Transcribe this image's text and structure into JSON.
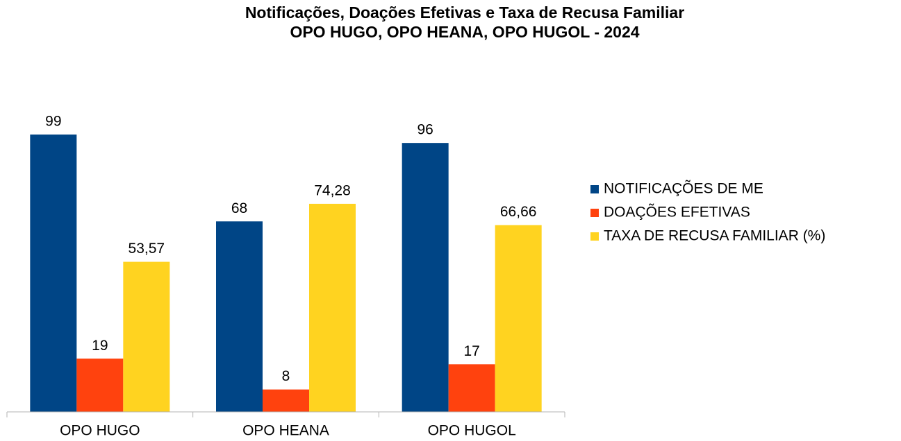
{
  "chart_data": {
    "type": "bar",
    "title": "Notificações, Doações Efetivas e Taxa de Recusa Familiar",
    "subtitle": "OPO HUGO, OPO HEANA, OPO HUGOL - 2024",
    "categories": [
      "OPO HUGO",
      "OPO HEANA",
      "OPO HUGOL"
    ],
    "series": [
      {
        "name": "NOTIFICAÇÕES DE ME",
        "color": "#004586",
        "values": [
          99,
          68,
          96
        ]
      },
      {
        "name": "DOAÇÕES EFETIVAS",
        "color": "#ff420e",
        "values": [
          19,
          8,
          17
        ]
      },
      {
        "name": "TAXA DE RECUSA FAMILIAR (%)",
        "color": "#ffd320",
        "values": [
          53.57,
          74.28,
          66.66
        ],
        "value_labels": [
          "53,57",
          "74,28",
          "66,66"
        ]
      }
    ],
    "ylim": [
      0,
      100
    ],
    "legend": "right"
  }
}
